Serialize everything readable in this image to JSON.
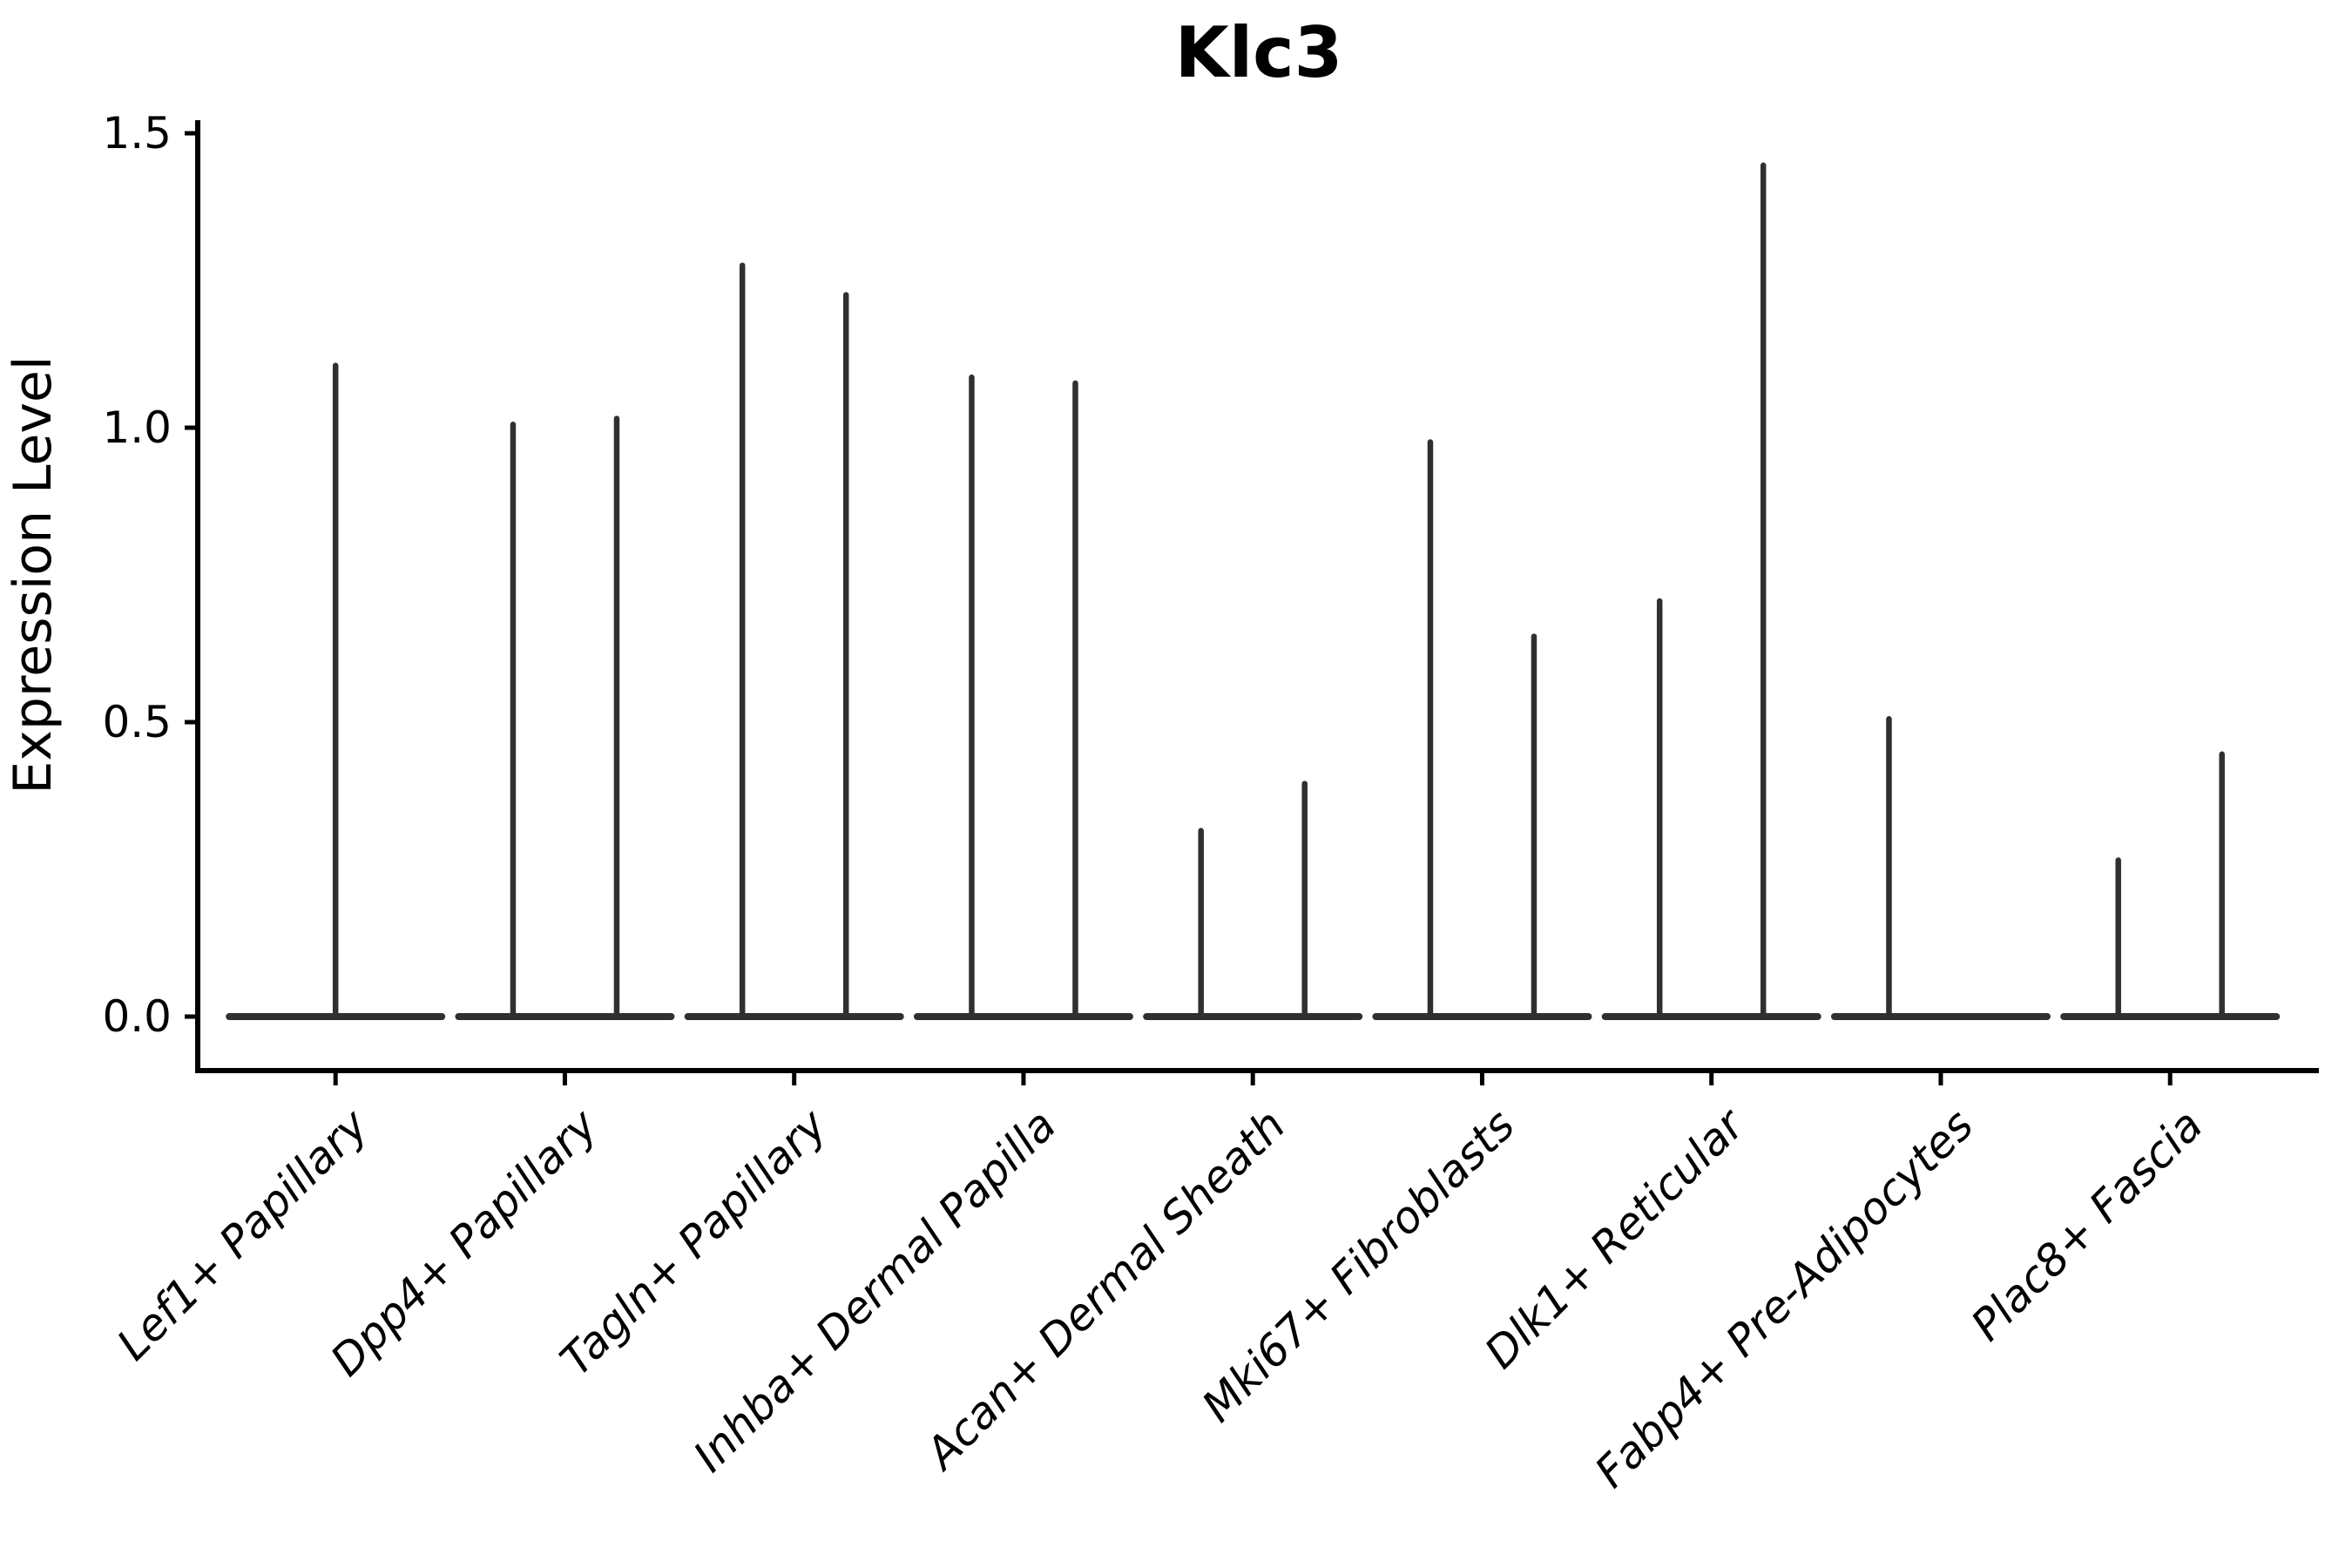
{
  "page": {
    "background": "#ffffff"
  },
  "chart_data": {
    "type": "violin",
    "title": "Klc3",
    "ylabel": "Expression Level",
    "xlabel": "",
    "ytick_labels": [
      "0.0",
      "0.5",
      "1.0",
      "1.5"
    ],
    "ytick_values": [
      0.0,
      0.5,
      1.0,
      1.5
    ],
    "ylim": [
      -0.09,
      1.52
    ],
    "grid": false,
    "legend": null,
    "categories": [
      "Lef1+ Papillary",
      "Dpp4+ Papillary",
      "Tagln+ Papillary",
      "Inhba+ Dermal Papilla",
      "Acan+ Dermal Sheath",
      "Mki67+ Fibroblasts",
      "Dlk1+ Reticular",
      "Fabp4+ Pre-Adipocytes",
      "Plac8+ Fascia"
    ],
    "baseline_value": 0.0,
    "violins": [
      {
        "category": "Lef1+ Papillary",
        "spikes": [
          {
            "offset": "center",
            "max": 1.11
          }
        ]
      },
      {
        "category": "Dpp4+ Papillary",
        "spikes": [
          {
            "offset": "left",
            "max": 1.01
          },
          {
            "offset": "right",
            "max": 1.02
          }
        ]
      },
      {
        "category": "Tagln+ Papillary",
        "spikes": [
          {
            "offset": "left",
            "max": 1.28
          },
          {
            "offset": "right",
            "max": 1.23
          }
        ]
      },
      {
        "category": "Inhba+ Dermal Papilla",
        "spikes": [
          {
            "offset": "left",
            "max": 1.09
          },
          {
            "offset": "right",
            "max": 1.08
          }
        ]
      },
      {
        "category": "Acan+ Dermal Sheath",
        "spikes": [
          {
            "offset": "left",
            "max": 0.32
          },
          {
            "offset": "right",
            "max": 0.4
          }
        ]
      },
      {
        "category": "Mki67+ Fibroblasts",
        "spikes": [
          {
            "offset": "left",
            "max": 0.98
          },
          {
            "offset": "right",
            "max": 0.65
          }
        ]
      },
      {
        "category": "Dlk1+ Reticular",
        "spikes": [
          {
            "offset": "left",
            "max": 0.71
          },
          {
            "offset": "right",
            "max": 1.45
          }
        ]
      },
      {
        "category": "Fabp4+ Pre-Adipocytes",
        "spikes": [
          {
            "offset": "left",
            "max": 0.51
          }
        ]
      },
      {
        "category": "Plac8+ Fascia",
        "spikes": [
          {
            "offset": "left",
            "max": 0.27
          },
          {
            "offset": "right",
            "max": 0.45
          }
        ]
      }
    ],
    "colors": {
      "violin": "#303030",
      "axis": "#000000",
      "text": "#000000"
    }
  }
}
